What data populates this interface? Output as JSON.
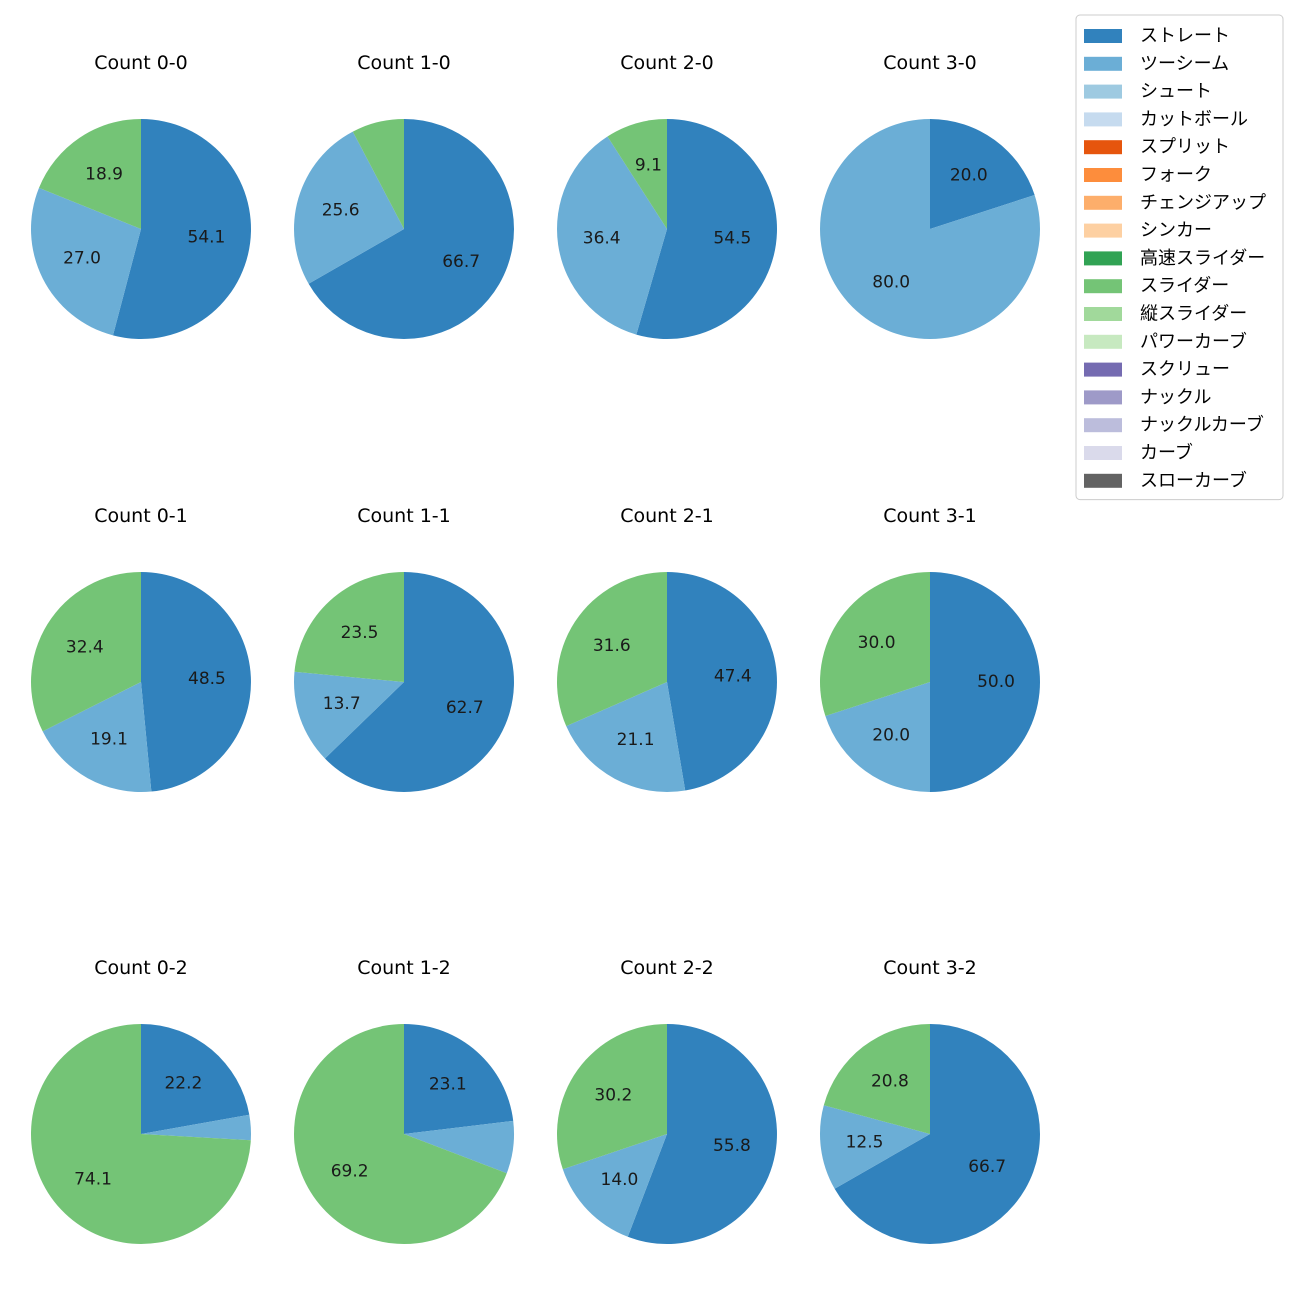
{
  "colors": {
    "ストレート": "#3182bd",
    "ツーシーム": "#6baed6",
    "シュート": "#9ecae1",
    "カットボール": "#c6dbef",
    "スプリット": "#e6550d",
    "フォーク": "#fd8d3c",
    "チェンジアップ": "#fdae6b",
    "シンカー": "#fdd0a2",
    "高速スライダー": "#31a354",
    "スライダー": "#74c476",
    "縦スライダー": "#a1d99b",
    "パワーカーブ": "#c7e9c0",
    "スクリュー": "#756bb1",
    "ナックル": "#9e9ac8",
    "ナックルカーブ": "#bcbddc",
    "カーブ": "#dadaeb",
    "スローカーブ": "#636363"
  },
  "chart_data": {
    "type": "pie",
    "legend": {
      "placement": "top-right",
      "entries": [
        "ストレート",
        "ツーシーム",
        "シュート",
        "カットボール",
        "スプリット",
        "フォーク",
        "チェンジアップ",
        "シンカー",
        "高速スライダー",
        "スライダー",
        "縦スライダー",
        "パワーカーブ",
        "スクリュー",
        "ナックル",
        "ナックルカーブ",
        "カーブ",
        "スローカーブ"
      ]
    },
    "charts": [
      {
        "title": "Count 0-0",
        "slices": [
          {
            "label": "ストレート",
            "value": 54.1,
            "shown": "54.1"
          },
          {
            "label": "ツーシーム",
            "value": 27.0,
            "shown": "27.0"
          },
          {
            "label": "スライダー",
            "value": 18.9,
            "shown": "18.9"
          }
        ]
      },
      {
        "title": "Count 1-0",
        "slices": [
          {
            "label": "ストレート",
            "value": 66.7,
            "shown": "66.7"
          },
          {
            "label": "ツーシーム",
            "value": 25.6,
            "shown": "25.6"
          },
          {
            "label": "スライダー",
            "value": 7.7,
            "shown": ""
          }
        ]
      },
      {
        "title": "Count 2-0",
        "slices": [
          {
            "label": "ストレート",
            "value": 54.5,
            "shown": "54.5"
          },
          {
            "label": "ツーシーム",
            "value": 36.4,
            "shown": "36.4"
          },
          {
            "label": "スライダー",
            "value": 9.1,
            "shown": "9.1"
          }
        ]
      },
      {
        "title": "Count 3-0",
        "slices": [
          {
            "label": "ストレート",
            "value": 20.0,
            "shown": "20.0"
          },
          {
            "label": "ツーシーム",
            "value": 80.0,
            "shown": "80.0"
          }
        ]
      },
      {
        "title": "Count 0-1",
        "slices": [
          {
            "label": "ストレート",
            "value": 48.5,
            "shown": "48.5"
          },
          {
            "label": "ツーシーム",
            "value": 19.1,
            "shown": "19.1"
          },
          {
            "label": "スライダー",
            "value": 32.4,
            "shown": "32.4"
          }
        ]
      },
      {
        "title": "Count 1-1",
        "slices": [
          {
            "label": "ストレート",
            "value": 62.7,
            "shown": "62.7"
          },
          {
            "label": "ツーシーム",
            "value": 13.7,
            "shown": "13.7"
          },
          {
            "label": "スライダー",
            "value": 23.5,
            "shown": "23.5"
          }
        ]
      },
      {
        "title": "Count 2-1",
        "slices": [
          {
            "label": "ストレート",
            "value": 47.4,
            "shown": "47.4"
          },
          {
            "label": "ツーシーム",
            "value": 21.1,
            "shown": "21.1"
          },
          {
            "label": "スライダー",
            "value": 31.6,
            "shown": "31.6"
          }
        ]
      },
      {
        "title": "Count 3-1",
        "slices": [
          {
            "label": "ストレート",
            "value": 50.0,
            "shown": "50.0"
          },
          {
            "label": "ツーシーム",
            "value": 20.0,
            "shown": "20.0"
          },
          {
            "label": "スライダー",
            "value": 30.0,
            "shown": "30.0"
          }
        ]
      },
      {
        "title": "Count 0-2",
        "slices": [
          {
            "label": "ストレート",
            "value": 22.2,
            "shown": "22.2"
          },
          {
            "label": "ツーシーム",
            "value": 3.7,
            "shown": ""
          },
          {
            "label": "スライダー",
            "value": 74.1,
            "shown": "74.1"
          }
        ]
      },
      {
        "title": "Count 1-2",
        "slices": [
          {
            "label": "ストレート",
            "value": 23.1,
            "shown": "23.1"
          },
          {
            "label": "ツーシーム",
            "value": 7.7,
            "shown": ""
          },
          {
            "label": "スライダー",
            "value": 69.2,
            "shown": "69.2"
          }
        ]
      },
      {
        "title": "Count 2-2",
        "slices": [
          {
            "label": "ストレート",
            "value": 55.8,
            "shown": "55.8"
          },
          {
            "label": "ツーシーム",
            "value": 14.0,
            "shown": "14.0"
          },
          {
            "label": "スライダー",
            "value": 30.2,
            "shown": "30.2"
          }
        ]
      },
      {
        "title": "Count 3-2",
        "slices": [
          {
            "label": "ストレート",
            "value": 66.7,
            "shown": "66.7"
          },
          {
            "label": "ツーシーム",
            "value": 12.5,
            "shown": "12.5"
          },
          {
            "label": "スライダー",
            "value": 20.8,
            "shown": "20.8"
          }
        ]
      }
    ]
  }
}
